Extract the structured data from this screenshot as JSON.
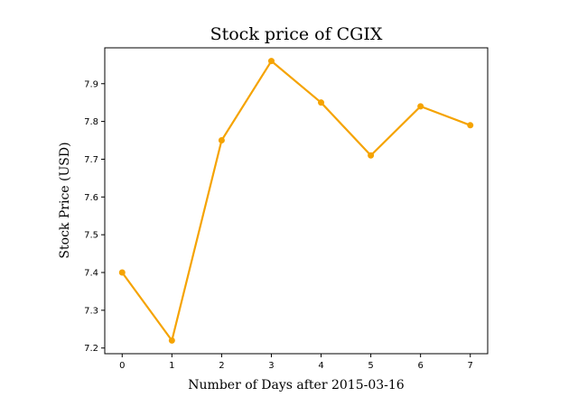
{
  "chart_data": {
    "type": "line",
    "title": "Stock price of CGIX",
    "xlabel": "Number of Days after 2015-03-16",
    "ylabel": "Stock Price (USD)",
    "x": [
      0,
      1,
      2,
      3,
      4,
      5,
      6,
      7
    ],
    "series": [
      {
        "values": [
          7.4,
          7.22,
          7.75,
          7.96,
          7.85,
          7.71,
          7.84,
          7.79
        ],
        "color": "#f5a300",
        "marker": "circle"
      }
    ],
    "xlim": [
      -0.35,
      7.35
    ],
    "ylim": [
      7.185,
      7.995
    ],
    "xticks": [
      "0",
      "1",
      "2",
      "3",
      "4",
      "5",
      "6",
      "7"
    ],
    "yticks": [
      "7.2",
      "7.3",
      "7.4",
      "7.5",
      "7.6",
      "7.7",
      "7.8",
      "7.9"
    ],
    "grid": false
  }
}
